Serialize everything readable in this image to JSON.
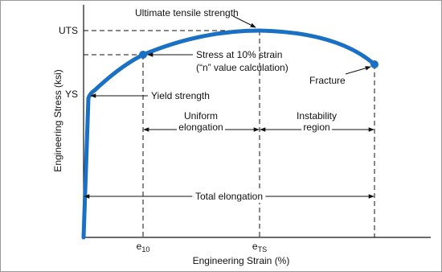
{
  "title_annotation": "Ultimate tensile strength",
  "y_labels": {
    "uts": "UTS",
    "ys": "YS"
  },
  "annotations": {
    "stress_10": [
      "Stress at 10% strain",
      "(“n” value calculation)"
    ],
    "yield": "Yield strength",
    "uniform": [
      "Uniform",
      "elongation"
    ],
    "instability": [
      "Instability",
      "region"
    ],
    "fracture": "Fracture",
    "total": "Total elongation"
  },
  "x_labels": {
    "e10": {
      "base": "e",
      "sub": "10"
    },
    "ets": {
      "base": "e",
      "sub": "TS"
    }
  },
  "axes": {
    "y_title": "Engineering Stress (ksi)",
    "x_title": "Engineering Strain (%)"
  }
}
